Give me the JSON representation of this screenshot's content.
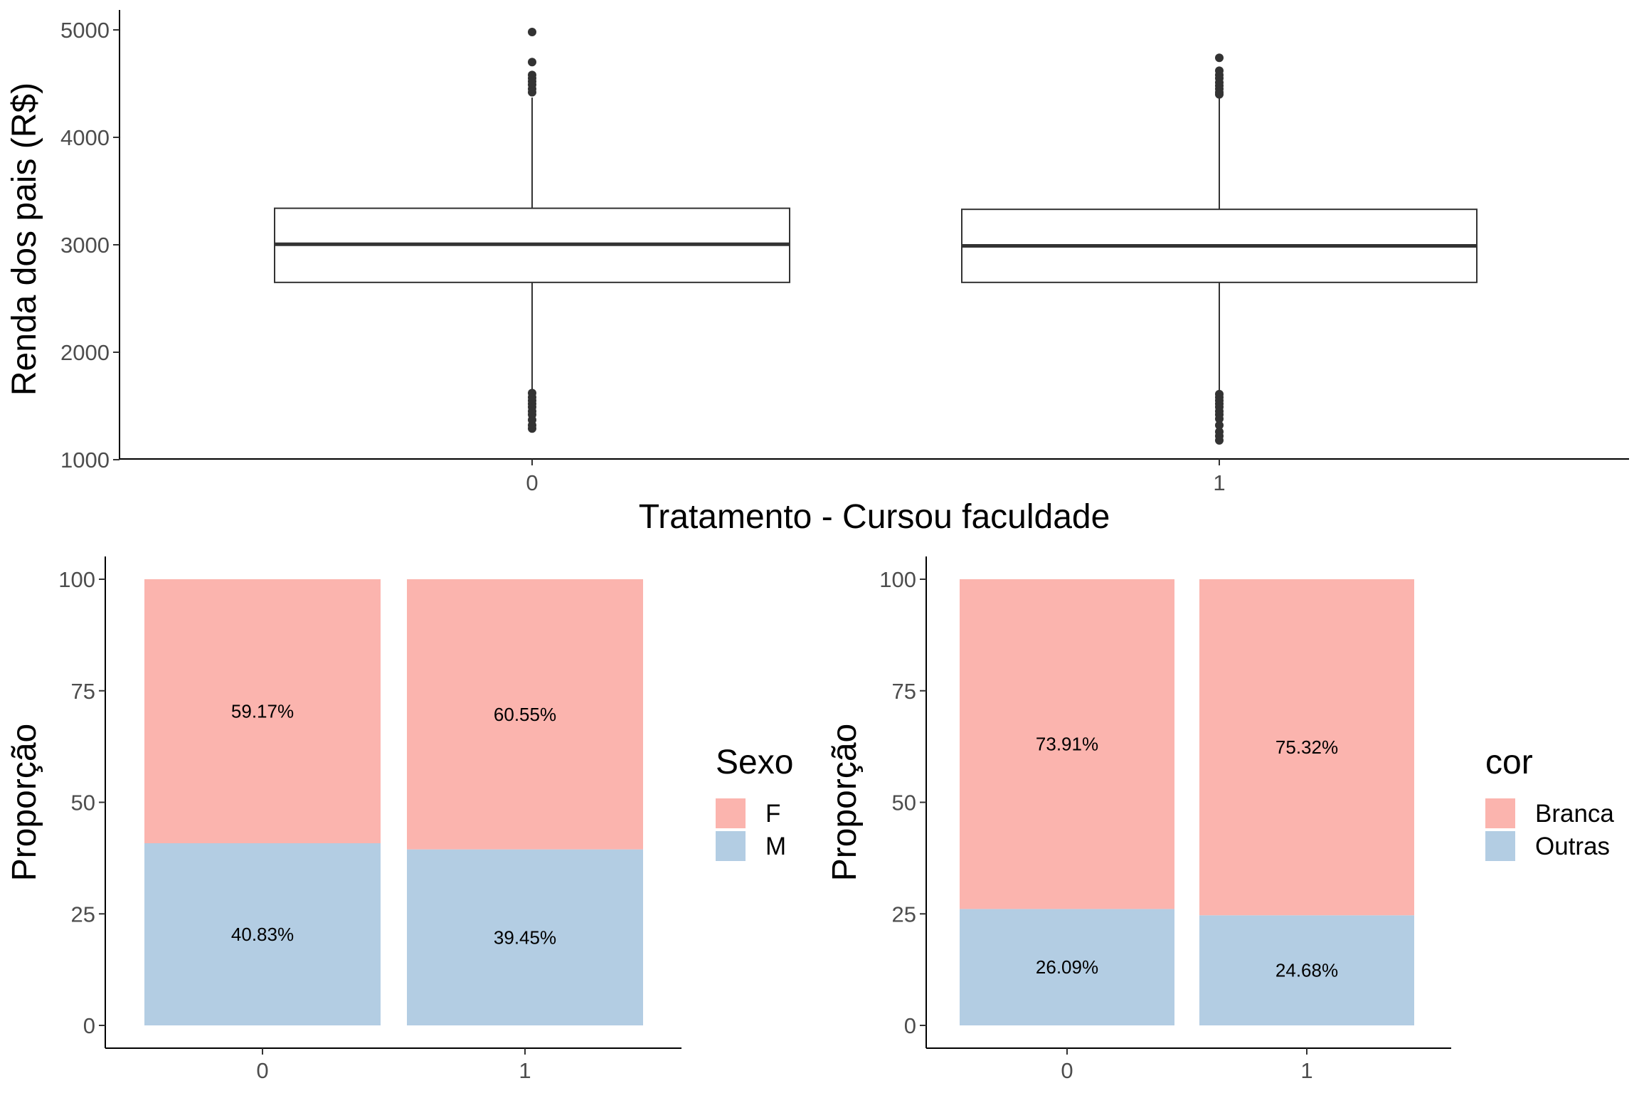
{
  "chart_data": [
    {
      "type": "boxplot",
      "title": "",
      "xlabel": "Tratamento - Cursou faculdade",
      "ylabel": "Renda dos pais (R$)",
      "ylim": [
        1000,
        5000
      ],
      "yticks": [
        1000,
        2000,
        3000,
        4000,
        5000
      ],
      "categories": [
        "0",
        "1"
      ],
      "grid": false,
      "boxes": [
        {
          "category": "0",
          "q1": 2650,
          "median": 3005,
          "q3": 3340,
          "whisker_low": 1640,
          "whisker_high": 4370,
          "outliers": [
            4980,
            4700,
            4580,
            4550,
            4520,
            4490,
            4450,
            4420,
            1620,
            1580,
            1550,
            1520,
            1490,
            1450,
            1420,
            1370,
            1320,
            1290
          ]
        },
        {
          "category": "1",
          "q1": 2650,
          "median": 2990,
          "q3": 3330,
          "whisker_low": 1640,
          "whisker_high": 4380,
          "outliers": [
            4740,
            4620,
            4580,
            4550,
            4510,
            4480,
            4450,
            4420,
            4400,
            1610,
            1580,
            1550,
            1520,
            1490,
            1450,
            1420,
            1380,
            1320,
            1260,
            1220,
            1180
          ]
        }
      ]
    },
    {
      "type": "bar",
      "stacked": true,
      "xlabel": "",
      "ylabel": "Proporção",
      "ylim": [
        0,
        100
      ],
      "yticks": [
        0,
        25,
        50,
        75,
        100
      ],
      "categories": [
        "0",
        "1"
      ],
      "legend_title": "Sexo",
      "legend_position": "right",
      "series": [
        {
          "name": "F",
          "color": "#FBB4AE",
          "values": [
            59.17,
            60.55
          ],
          "labels": [
            "59.17%",
            "60.55%"
          ]
        },
        {
          "name": "M",
          "color": "#B3CDE3",
          "values": [
            40.83,
            39.45
          ],
          "labels": [
            "40.83%",
            "39.45%"
          ]
        }
      ]
    },
    {
      "type": "bar",
      "stacked": true,
      "xlabel": "",
      "ylabel": "Proporção",
      "ylim": [
        0,
        100
      ],
      "yticks": [
        0,
        25,
        50,
        75,
        100
      ],
      "categories": [
        "0",
        "1"
      ],
      "legend_title": "cor",
      "legend_position": "right",
      "series": [
        {
          "name": "Branca",
          "color": "#FBB4AE",
          "values": [
            73.91,
            75.32
          ],
          "labels": [
            "73.91%",
            "75.32%"
          ]
        },
        {
          "name": "Outras",
          "color": "#B3CDE3",
          "values": [
            26.09,
            24.68
          ],
          "labels": [
            "26.09%",
            "24.68%"
          ]
        }
      ]
    }
  ]
}
